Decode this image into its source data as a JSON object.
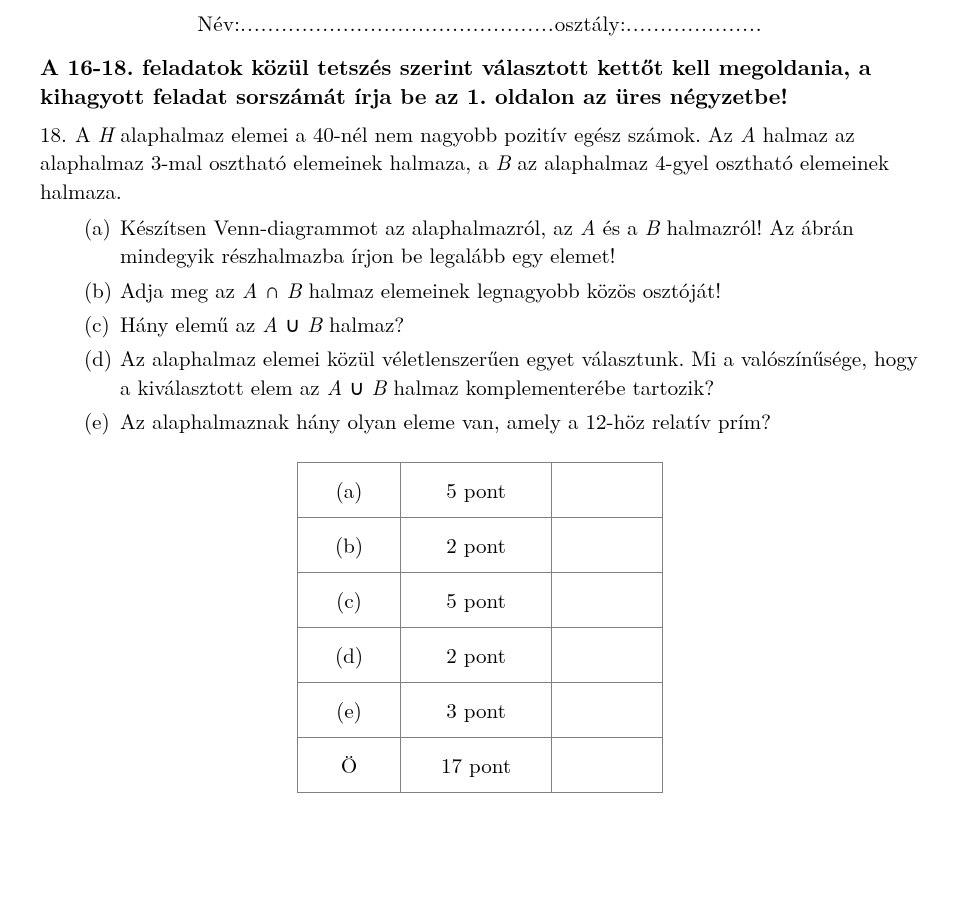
{
  "header": {
    "nev_label": "Név:",
    "nev_dots": "..............................................",
    "osztaly_label": "osztály:",
    "osztaly_dots": "...................."
  },
  "intro": "A 16-18. feladatok közül tetszés szerint választott kettőt kell megoldania, a kihagyott feladat sorszámát írja be az 1. oldalon az üres négyzetbe!",
  "problem": {
    "number": "18.",
    "text_parts": {
      "p1": "A ",
      "H": "H",
      "p2": " alaphalmaz elemei a 40-nél nem nagyobb pozitív egész számok. Az ",
      "A": "A",
      "p3": " halmaz az alaphalmaz 3-mal osztható elemeinek halmaza, a ",
      "B": "B",
      "p4": " az alaphalmaz 4-gyel osztható elemeinek halmaza."
    }
  },
  "subparts": [
    {
      "marker": "(a)",
      "t1": "Készítsen Venn-diagrammot az alaphalmazról, az ",
      "A": "A",
      "t2": " és a ",
      "B": "B",
      "t3": " halmazról!   Az ábrán mindegyik részhalmazba írjon be legalább egy elemet!"
    },
    {
      "marker": "(b)",
      "t1": "Adja meg az ",
      "A": "A",
      "cap": " ∩ ",
      "B": "B",
      "t2": " halmaz elemeinek legnagyobb közös osztóját!"
    },
    {
      "marker": "(c)",
      "t1": "Hány elemű az ",
      "A": "A",
      "cup": " ∪ ",
      "B": "B",
      "t2": " halmaz?"
    },
    {
      "marker": "(d)",
      "t1": "Az alaphalmaz elemei közül véletlenszerűen egyet választunk. Mi a valószínűsége, hogy a kiválasztott elem az ",
      "A": "A",
      "cup": " ∪ ",
      "B": "B",
      "t2": " halmaz komplementerébe tartozik?"
    },
    {
      "marker": "(e)",
      "t1": "Az alaphalmaznak hány olyan eleme van, amely a 12-höz relatív prím?"
    }
  ],
  "score_table": {
    "rows": [
      {
        "label": "(a)",
        "points": "5 pont"
      },
      {
        "label": "(b)",
        "points": "2 pont"
      },
      {
        "label": "(c)",
        "points": "5 pont"
      },
      {
        "label": "(d)",
        "points": "2 pont"
      },
      {
        "label": "(e)",
        "points": "3 pont"
      },
      {
        "label": "Ö",
        "points": "17 pont"
      }
    ],
    "border_color": "#808080",
    "background": "#ffffff"
  }
}
